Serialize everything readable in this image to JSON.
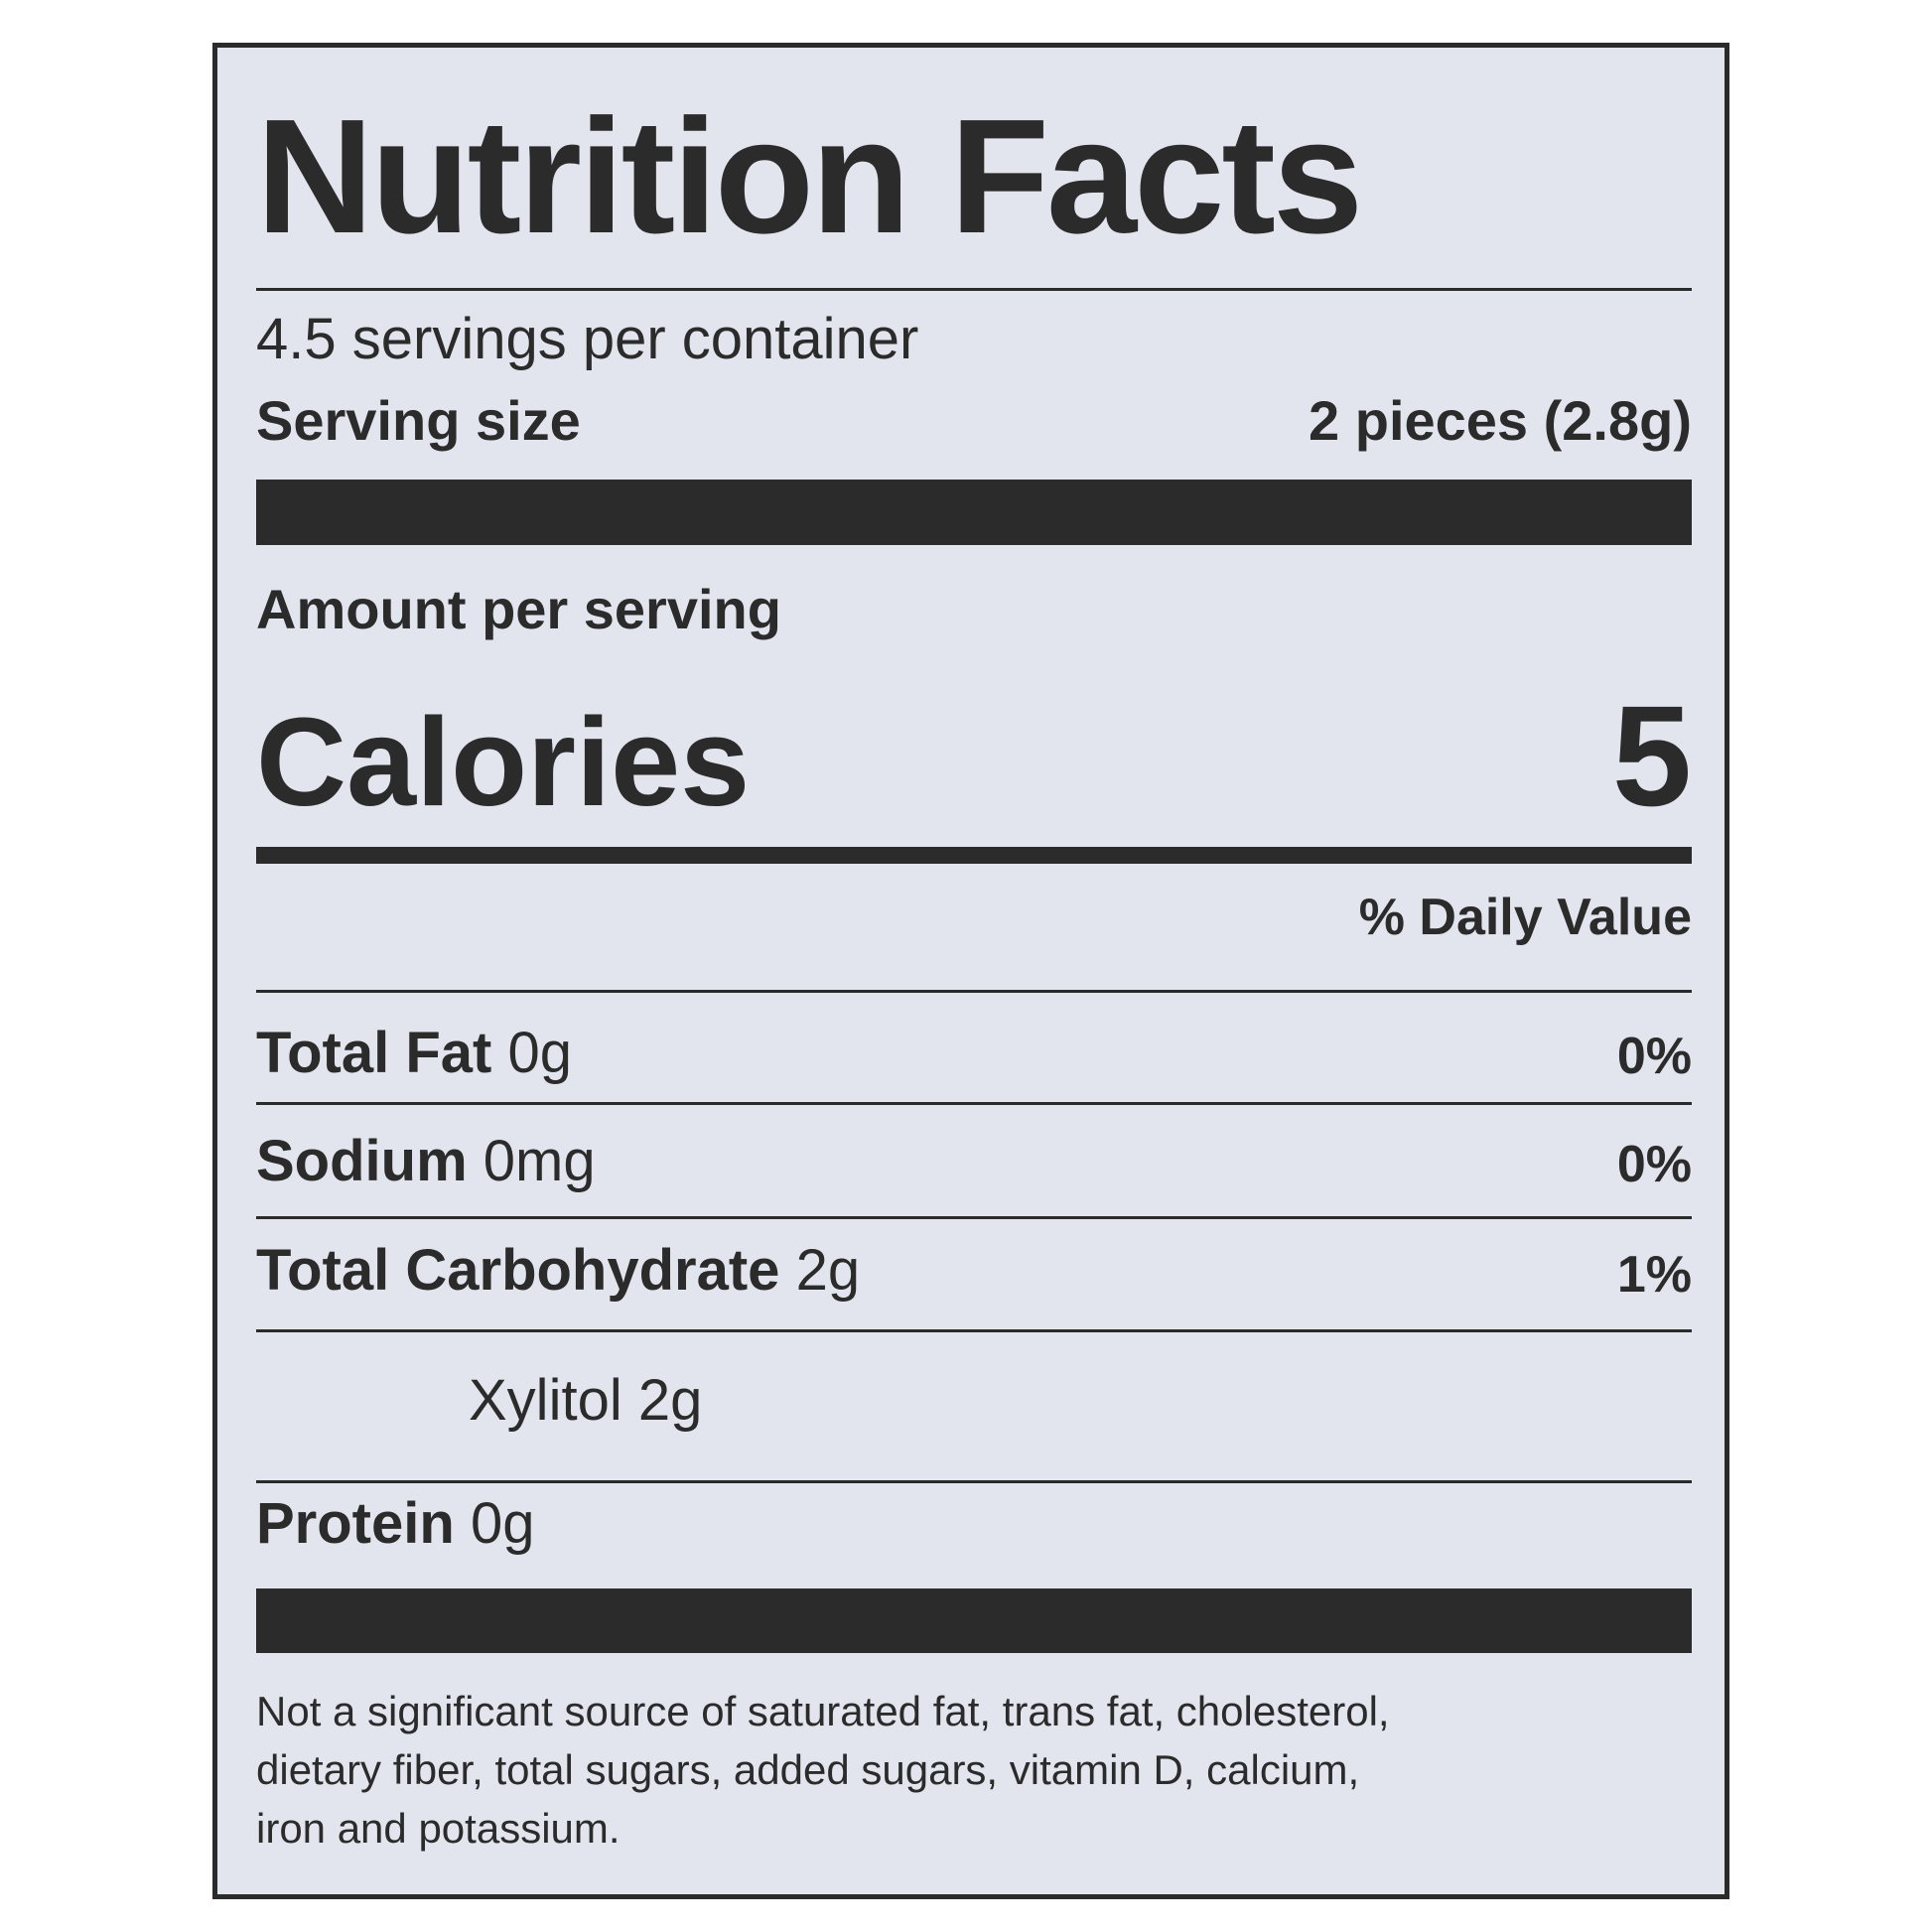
{
  "title": "Nutrition Facts",
  "servings_per_container": "4.5 servings per container",
  "serving_size": {
    "label": "Serving size",
    "value": "2 pieces (2.8g)"
  },
  "amount_per_serving": "Amount per serving",
  "calories": {
    "label": "Calories",
    "value": "5"
  },
  "daily_value_header": "% Daily Value",
  "nutrients": [
    {
      "name": "Total Fat",
      "amount": "0g",
      "dv": "0%"
    },
    {
      "name": "Sodium",
      "amount": "0mg",
      "dv": "0%"
    },
    {
      "name": "Total Carbohydrate",
      "amount": "2g",
      "dv": "1%"
    },
    {
      "name": "",
      "amount": "Xylitol 2g",
      "dv": ""
    },
    {
      "name": "Protein",
      "amount": "0g",
      "dv": ""
    }
  ],
  "footnote": [
    "Not a significant source of saturated fat, trans fat, cholesterol,",
    "dietary fiber, total sugars, added sugars, vitamin D, calcium,",
    "iron and potassium."
  ]
}
